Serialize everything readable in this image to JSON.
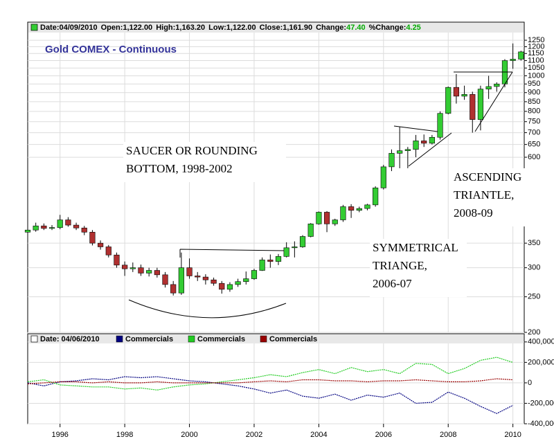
{
  "chart_data": [
    {
      "type": "candlestick",
      "title": "Gold COMEX - Continuous",
      "header": [
        {
          "label": "Date:",
          "value": "04/09/2010"
        },
        {
          "label": "Open:",
          "value": "1,122.00"
        },
        {
          "label": "High:",
          "value": "1,163.20"
        },
        {
          "label": "Low:",
          "value": "1,122.00"
        },
        {
          "label": "Close:",
          "value": "1,161.90"
        },
        {
          "label": "Change:",
          "value": "47.40",
          "color": "#00aa00"
        },
        {
          "label": "%Change:",
          "value": "4.25",
          "color": "#00aa00"
        }
      ],
      "annotations": [
        {
          "lines": [
            "SAUCER OR ROUNDING",
            "BOTTOM, 1998-2002"
          ]
        },
        {
          "lines": [
            "SYMMETRICAL",
            "TRIANGE,",
            "2006-07"
          ]
        },
        {
          "lines": [
            "ASCENDING",
            "TRIANTLE,",
            "2008-09"
          ]
        }
      ],
      "x": [
        1995.0,
        1995.25,
        1995.5,
        1995.75,
        1996.0,
        1996.25,
        1996.5,
        1996.75,
        1997.0,
        1997.25,
        1997.5,
        1997.75,
        1998.0,
        1998.25,
        1998.5,
        1998.75,
        1999.0,
        1999.25,
        1999.5,
        1999.75,
        2000.0,
        2000.25,
        2000.5,
        2000.75,
        2001.0,
        2001.25,
        2001.5,
        2001.75,
        2002.0,
        2002.25,
        2002.5,
        2002.75,
        2003.0,
        2003.25,
        2003.5,
        2003.75,
        2004.0,
        2004.25,
        2004.5,
        2004.75,
        2005.0,
        2005.25,
        2005.5,
        2005.75,
        2006.0,
        2006.25,
        2006.5,
        2006.75,
        2007.0,
        2007.25,
        2007.5,
        2007.75,
        2008.0,
        2008.25,
        2008.5,
        2008.75,
        2009.0,
        2009.25,
        2009.5,
        2009.75,
        2010.0,
        2010.25
      ],
      "open": [
        375,
        380,
        390,
        384,
        386,
        405,
        392,
        385,
        375,
        350,
        342,
        325,
        305,
        298,
        300,
        290,
        295,
        287,
        270,
        256,
        300,
        285,
        283,
        278,
        272,
        262,
        270,
        275,
        280,
        295,
        315,
        312,
        322,
        340,
        342,
        365,
        395,
        425,
        395,
        405,
        440,
        430,
        435,
        445,
        495,
        565,
        615,
        625,
        630,
        665,
        655,
        680,
        790,
        930,
        880,
        890,
        760,
        920,
        935,
        950,
        1100,
        1110
      ],
      "high": [
        392,
        398,
        396,
        392,
        418,
        412,
        398,
        390,
        380,
        356,
        346,
        330,
        312,
        310,
        306,
        300,
        300,
        292,
        276,
        330,
        318,
        292,
        288,
        282,
        276,
        274,
        280,
        293,
        298,
        320,
        326,
        327,
        352,
        354,
        368,
        397,
        427,
        428,
        408,
        445,
        447,
        440,
        448,
        500,
        572,
        630,
        725,
        640,
        690,
        692,
        690,
        800,
        935,
        1011,
        940,
        905,
        940,
        1000,
        960,
        1110,
        1225,
        1170
      ],
      "low": [
        372,
        376,
        380,
        380,
        382,
        388,
        380,
        368,
        345,
        336,
        320,
        300,
        285,
        292,
        285,
        284,
        282,
        265,
        252,
        253,
        280,
        276,
        270,
        268,
        255,
        258,
        266,
        270,
        278,
        294,
        300,
        305,
        320,
        320,
        340,
        363,
        393,
        375,
        390,
        400,
        410,
        425,
        430,
        440,
        490,
        550,
        560,
        560,
        600,
        640,
        650,
        670,
        785,
        840,
        860,
        700,
        710,
        865,
        905,
        930,
        1045,
        1100
      ],
      "close": [
        380,
        390,
        384,
        386,
        405,
        392,
        385,
        375,
        350,
        342,
        325,
        305,
        298,
        300,
        290,
        295,
        287,
        270,
        256,
        300,
        285,
        283,
        278,
        272,
        262,
        270,
        275,
        280,
        295,
        315,
        312,
        322,
        340,
        342,
        365,
        395,
        425,
        395,
        405,
        440,
        430,
        435,
        445,
        495,
        565,
        615,
        625,
        630,
        665,
        655,
        680,
        790,
        930,
        880,
        890,
        760,
        920,
        935,
        950,
        1100,
        1110,
        1162
      ],
      "up_color": "#33cc33",
      "down_color": "#b03030",
      "xlim": [
        1995.0,
        2010.35
      ],
      "ylim": [
        200,
        1400
      ],
      "log_scale": true,
      "yticks": [
        200,
        250,
        300,
        350,
        600,
        650,
        700,
        750,
        800,
        850,
        900,
        950,
        1000,
        1050,
        1100,
        1150,
        1200,
        1250
      ],
      "grid": true
    },
    {
      "type": "line",
      "date": "Date: 04/06/2010",
      "x": [
        1995.0,
        1995.5,
        1996.0,
        1996.5,
        1997.0,
        1997.5,
        1998.0,
        1998.5,
        1999.0,
        1999.5,
        2000.0,
        2000.5,
        2001.0,
        2001.5,
        2002.0,
        2002.5,
        2003.0,
        2003.5,
        2004.0,
        2004.5,
        2005.0,
        2005.5,
        2006.0,
        2006.5,
        2007.0,
        2007.5,
        2008.0,
        2008.5,
        2009.0,
        2009.5,
        2010.0
      ],
      "series": [
        {
          "name": "Commercials",
          "color": "#000080",
          "values": [
            0,
            -30000,
            10000,
            20000,
            40000,
            30000,
            60000,
            50000,
            60000,
            40000,
            20000,
            10000,
            -10000,
            -30000,
            -60000,
            -100000,
            -70000,
            -130000,
            -150000,
            -110000,
            -170000,
            -120000,
            -140000,
            -100000,
            -200000,
            -190000,
            -90000,
            -150000,
            -230000,
            -300000,
            -220000
          ]
        },
        {
          "name": "Commercials",
          "color": "#22cc22",
          "values": [
            10000,
            30000,
            -20000,
            -30000,
            -40000,
            -40000,
            -60000,
            -50000,
            -70000,
            -40000,
            -20000,
            -10000,
            10000,
            30000,
            50000,
            80000,
            60000,
            100000,
            130000,
            90000,
            150000,
            110000,
            130000,
            90000,
            190000,
            180000,
            90000,
            140000,
            220000,
            250000,
            200000
          ]
        },
        {
          "name": "Commercials",
          "color": "#990000",
          "values": [
            -10000,
            0,
            10000,
            10000,
            0,
            10000,
            0,
            0,
            10000,
            0,
            0,
            0,
            0,
            0,
            10000,
            20000,
            10000,
            30000,
            30000,
            20000,
            20000,
            10000,
            20000,
            20000,
            30000,
            20000,
            10000,
            10000,
            20000,
            40000,
            30000
          ]
        }
      ],
      "xlim": [
        1995.0,
        2010.35
      ],
      "ylim": [
        -400000,
        480000
      ],
      "yticks": [
        {
          "value": -400000,
          "label": "-400,000"
        },
        {
          "value": -200000,
          "label": "-200,000"
        },
        0,
        {
          "value": 200000,
          "label": "200,000"
        },
        {
          "value": 400000,
          "label": "400,000"
        }
      ],
      "xticks": [
        1996,
        1998,
        2000,
        2002,
        2004,
        2006,
        2008,
        2010
      ],
      "grid": true
    }
  ]
}
